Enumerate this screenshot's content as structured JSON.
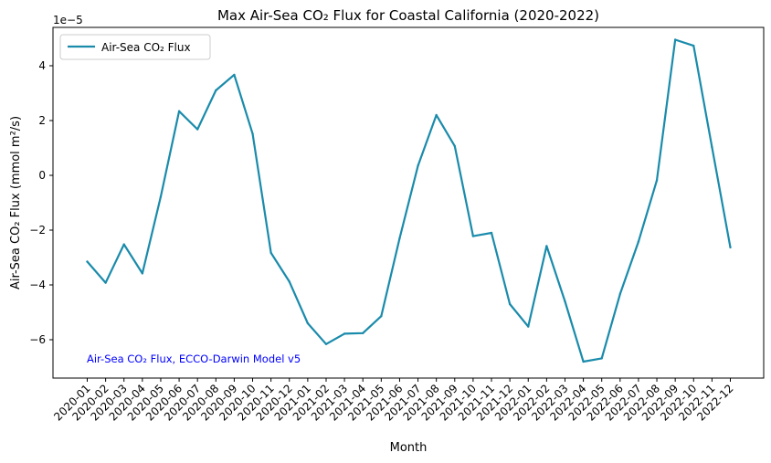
{
  "chart_data": {
    "type": "line",
    "title": "Max Air-Sea CO₂ Flux for Coastal California (2020-2022)",
    "xlabel": "Month",
    "ylabel": "Air-Sea CO₂ Flux (mmol m²/s)",
    "offset_text": "1e−5",
    "annotation": "Air-Sea CO₂ Flux, ECCO-Darwin Model v5",
    "annotation_color": "#0000ff",
    "legend": {
      "placement": "top-left",
      "entries": [
        "Air-Sea CO₂ Flux"
      ]
    },
    "grid": false,
    "ylim": [
      -7.4,
      5.4
    ],
    "yticks": [
      -6,
      -4,
      -2,
      0,
      2,
      4
    ],
    "categories": [
      "2020-01",
      "2020-02",
      "2020-03",
      "2020-04",
      "2020-05",
      "2020-06",
      "2020-07",
      "2020-08",
      "2020-09",
      "2020-10",
      "2020-11",
      "2020-12",
      "2021-01",
      "2021-02",
      "2021-03",
      "2021-04",
      "2021-05",
      "2021-06",
      "2021-07",
      "2021-08",
      "2021-09",
      "2021-10",
      "2021-11",
      "2021-12",
      "2022-01",
      "2022-02",
      "2022-03",
      "2022-04",
      "2022-05",
      "2022-06",
      "2022-07",
      "2022-08",
      "2022-09",
      "2022-10",
      "2022-11",
      "2022-12"
    ],
    "series": [
      {
        "name": "Air-Sea CO₂ Flux",
        "color": "#1a8bab",
        "values": [
          -3.15,
          -3.92,
          -2.52,
          -3.58,
          -0.78,
          2.34,
          1.68,
          3.1,
          3.67,
          1.52,
          -2.83,
          -3.88,
          -5.4,
          -6.16,
          -5.78,
          -5.76,
          -5.14,
          -2.3,
          0.35,
          2.2,
          1.07,
          -2.22,
          -2.1,
          -4.7,
          -5.52,
          -2.58,
          -4.6,
          -6.8,
          -6.68,
          -4.33,
          -2.42,
          -0.18,
          4.95,
          4.73,
          1.03,
          -2.63
        ]
      }
    ]
  }
}
